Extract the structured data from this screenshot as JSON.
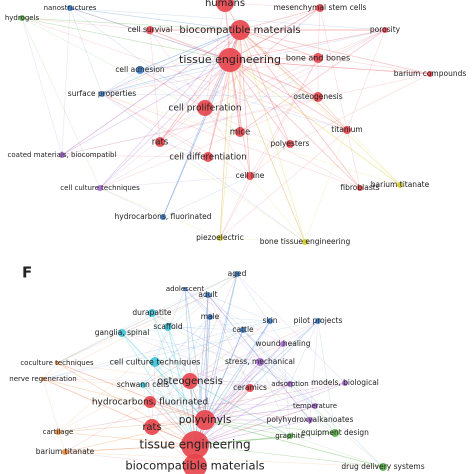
{
  "panels": [
    {
      "nodes": [
        {
          "label": "humans"
        },
        {
          "label": "nanostructures"
        },
        {
          "label": "hydrogels"
        },
        {
          "label": "mesenchymal stem cells"
        },
        {
          "label": "cell survival"
        },
        {
          "label": "biocompatible materials"
        },
        {
          "label": "porosity"
        },
        {
          "label": "tissue engineering"
        },
        {
          "label": "bone and bones"
        },
        {
          "label": "cell adhesion"
        },
        {
          "label": "barium compounds"
        },
        {
          "label": "surface properties"
        },
        {
          "label": "osteogenesis"
        },
        {
          "label": "cell proliferation"
        },
        {
          "label": "titanium"
        },
        {
          "label": "mice"
        },
        {
          "label": "polyesters"
        },
        {
          "label": "rats"
        },
        {
          "label": "coated materials, biocompatibl"
        },
        {
          "label": "cell differentiation"
        },
        {
          "label": "cell line"
        },
        {
          "label": "fibroblasts"
        },
        {
          "label": "barium titanate"
        },
        {
          "label": "cell culture techniques"
        },
        {
          "label": "hydrocarbons, fluorinated"
        },
        {
          "label": "piezoelectric"
        },
        {
          "label": "bone tissue engineering"
        }
      ]
    },
    {
      "label": "F",
      "nodes": [
        {
          "label": "aged"
        },
        {
          "label": "adolescent"
        },
        {
          "label": "adult"
        },
        {
          "label": "durapatite"
        },
        {
          "label": "skin"
        },
        {
          "label": "pilot projects"
        },
        {
          "label": "male"
        },
        {
          "label": "scaffold"
        },
        {
          "label": "ganglia, spinal"
        },
        {
          "label": "cattle"
        },
        {
          "label": "wound healing"
        },
        {
          "label": "coculture techniques"
        },
        {
          "label": "cell culture techniques"
        },
        {
          "label": "stress, mechanical"
        },
        {
          "label": "nerve regeneration"
        },
        {
          "label": "schwann cells"
        },
        {
          "label": "osteogenesis"
        },
        {
          "label": "ceramics"
        },
        {
          "label": "adsorption"
        },
        {
          "label": "models, biological"
        },
        {
          "label": "hydrocarbons, fluorinated"
        },
        {
          "label": "temperature"
        },
        {
          "label": "polyvinyls"
        },
        {
          "label": "polyhydroxyalkanoates"
        },
        {
          "label": "cartilage"
        },
        {
          "label": "rats"
        },
        {
          "label": "graphite"
        },
        {
          "label": "equipment design"
        },
        {
          "label": "tissue engineering"
        },
        {
          "label": "barium titanate"
        },
        {
          "label": "drug delivery systems"
        },
        {
          "label": "biocompatible materials"
        }
      ]
    }
  ]
}
